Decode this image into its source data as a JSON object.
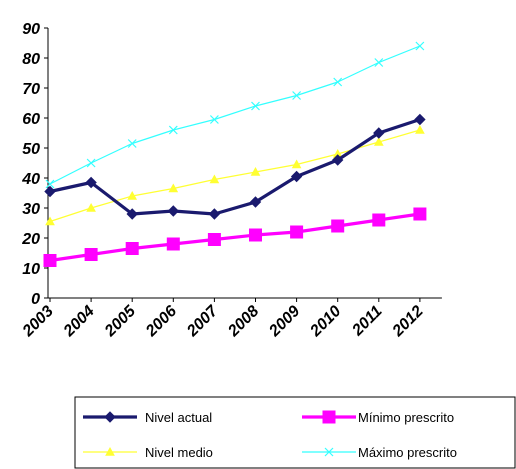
{
  "chart_data": {
    "type": "line",
    "title": "",
    "xlabel": "",
    "ylabel": "",
    "x": [
      "2003",
      "2004",
      "2005",
      "2006",
      "2007",
      "2008",
      "2009",
      "2010",
      "2011",
      "2012"
    ],
    "ylim": [
      0,
      90
    ],
    "yticks": [
      "0",
      "10",
      "20",
      "30",
      "40",
      "50",
      "60",
      "70",
      "80",
      "90"
    ],
    "grid": false,
    "legend_position": "bottom",
    "series": [
      {
        "name": "Nivel actual",
        "color": "#1a1a6e",
        "marker": "diamond",
        "values": [
          35.5,
          38.5,
          28,
          29,
          28,
          32,
          40.5,
          46,
          55,
          59.5
        ]
      },
      {
        "name": "Mínimo prescrito",
        "color": "#ff00ff",
        "marker": "square",
        "values": [
          12.5,
          14.5,
          16.5,
          18,
          19.5,
          21,
          22,
          24,
          26,
          28
        ]
      },
      {
        "name": "Nivel medio",
        "color": "#ffff33",
        "marker": "triangle",
        "values": [
          25.5,
          30,
          34,
          36.5,
          39.5,
          42,
          44.5,
          48,
          52,
          56
        ]
      },
      {
        "name": "Máximo prescrito",
        "color": "#33ffff",
        "marker": "x",
        "values": [
          38,
          45,
          51.5,
          56,
          59.5,
          64,
          67.5,
          72,
          78.5,
          84
        ]
      }
    ]
  }
}
